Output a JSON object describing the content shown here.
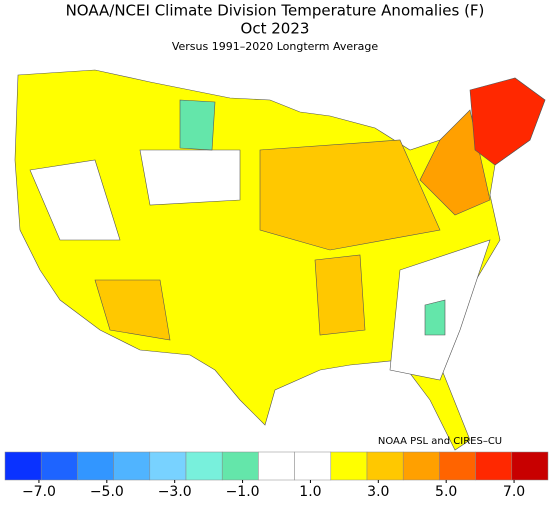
{
  "title": "NOAA/NCEI Climate Division Temperature Anomalies (F)",
  "period": "Oct 2023",
  "subtitle": "Versus 1991–2020 Longterm Average",
  "credit": "NOAA PSL and CIRES–CU",
  "colorbar": {
    "colors": [
      "#0a32ff",
      "#1e64ff",
      "#3296ff",
      "#50b4ff",
      "#78d2ff",
      "#78f0dc",
      "#64e6aa",
      "#ffffff",
      "#ffffff",
      "#ffff00",
      "#ffc800",
      "#ffa000",
      "#ff6400",
      "#ff2800",
      "#c80000"
    ],
    "clim": [
      -8,
      8
    ],
    "ticks": [
      {
        "value": -7,
        "label": "−7.0"
      },
      {
        "value": -5,
        "label": "−5.0"
      },
      {
        "value": -3,
        "label": "−3.0"
      },
      {
        "value": -1,
        "label": "−1.0"
      },
      {
        "value": 1,
        "label": "1.0"
      },
      {
        "value": 3,
        "label": "3.0"
      },
      {
        "value": 5,
        "label": "5.0"
      },
      {
        "value": 7,
        "label": "7.0"
      }
    ]
  }
}
